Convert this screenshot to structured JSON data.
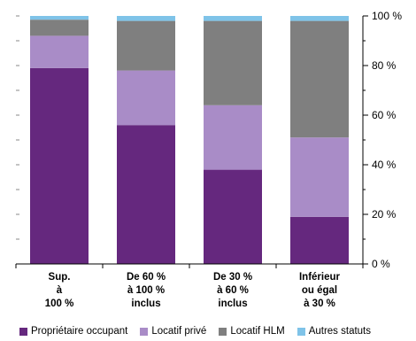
{
  "chart_data": {
    "type": "bar",
    "stacked": true,
    "categories": [
      "Sup.\nà\n100 %",
      "De 60 %\nà 100 %\ninclus",
      "De 30 %\nà 60 %\ninclus",
      "Inférieur\nou égal\nà 30 %"
    ],
    "series": [
      {
        "name": "Propriétaire occupant",
        "color": "#65287e",
        "values": [
          79,
          56,
          38,
          19
        ]
      },
      {
        "name": "Locatif privé",
        "color": "#a98cc7",
        "values": [
          13,
          22,
          26,
          32
        ]
      },
      {
        "name": "Locatif HLM",
        "color": "#7f7f7f",
        "values": [
          6.5,
          20,
          34,
          47
        ]
      },
      {
        "name": "Autres statuts",
        "color": "#7fc3e8",
        "values": [
          1.5,
          2,
          2,
          2
        ]
      }
    ],
    "ylim": [
      0,
      100
    ],
    "yticks": [
      "0 %",
      "20 %",
      "40 %",
      "60 %",
      "80 %",
      "100 %"
    ],
    "ytick_values": [
      0,
      20,
      40,
      60,
      80,
      100
    ],
    "grid": false,
    "legend_position": "bottom"
  }
}
